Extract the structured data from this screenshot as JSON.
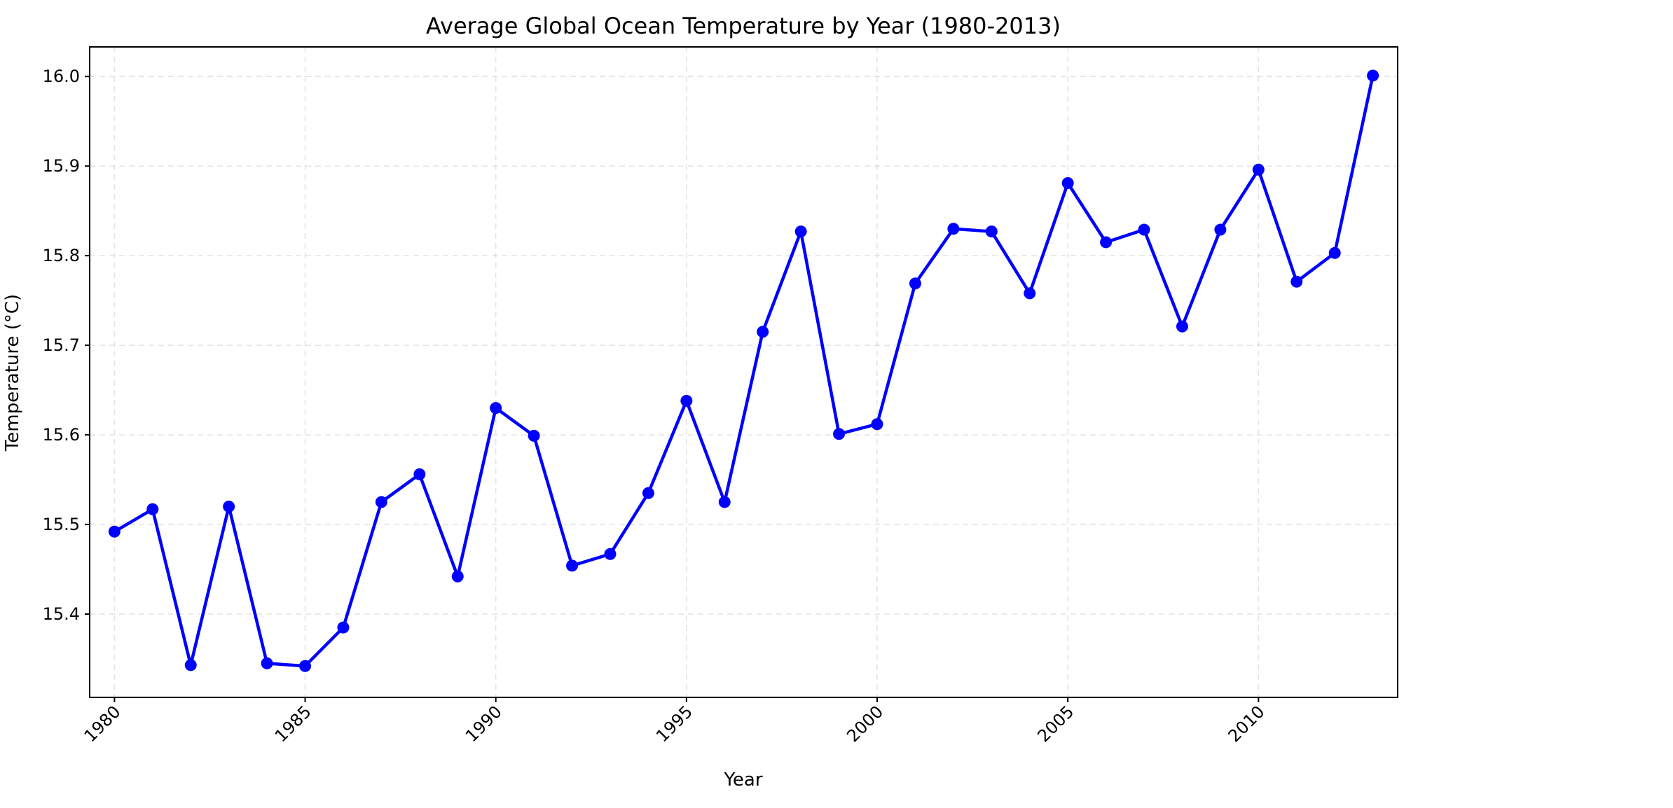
{
  "chart_data": {
    "type": "line",
    "title": "Average Global Ocean Temperature by Year (1980-2013)",
    "xlabel": "Year",
    "ylabel": "Temperature (°C)",
    "xlim": [
      1979.35,
      2013.65
    ],
    "ylim": [
      15.307,
      16.033
    ],
    "xticks": [
      1980,
      1985,
      1990,
      1995,
      2000,
      2005,
      2010
    ],
    "yticks": [
      15.4,
      15.5,
      15.6,
      15.7,
      15.8,
      15.9,
      16.0
    ],
    "ytick_labels": [
      "15.4",
      "15.5",
      "15.6",
      "15.7",
      "15.8",
      "15.9",
      "16.0"
    ],
    "grid": true,
    "series": [
      {
        "color": "#0000ff",
        "marker": "circle",
        "x": [
          1980,
          1981,
          1982,
          1983,
          1984,
          1985,
          1986,
          1987,
          1988,
          1989,
          1990,
          1991,
          1992,
          1993,
          1994,
          1995,
          1996,
          1997,
          1998,
          1999,
          2000,
          2001,
          2002,
          2003,
          2004,
          2005,
          2006,
          2007,
          2008,
          2009,
          2010,
          2011,
          2012,
          2013
        ],
        "y": [
          15.492,
          15.517,
          15.343,
          15.52,
          15.345,
          15.342,
          15.385,
          15.525,
          15.556,
          15.442,
          15.63,
          15.599,
          15.454,
          15.467,
          15.535,
          15.638,
          15.525,
          15.715,
          15.827,
          15.601,
          15.612,
          15.769,
          15.83,
          15.827,
          15.758,
          15.881,
          15.815,
          15.829,
          15.721,
          15.829,
          15.896,
          15.771,
          15.803,
          16.001
        ]
      }
    ]
  }
}
